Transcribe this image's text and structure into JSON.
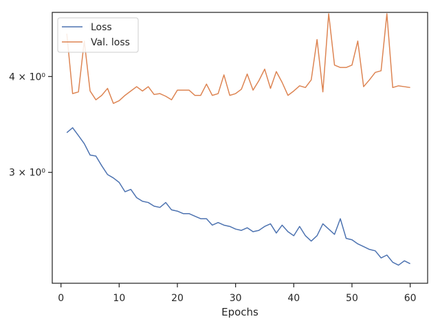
{
  "chart_data": {
    "type": "line",
    "title": "",
    "xlabel": "Epochs",
    "ylabel": "",
    "y_scale": "log",
    "xlim": [
      -1.5,
      63
    ],
    "ylim": [
      2.15,
      4.85
    ],
    "x_ticks": [
      0,
      10,
      20,
      30,
      40,
      50,
      60
    ],
    "x_tick_labels": [
      "0",
      "10",
      "20",
      "30",
      "40",
      "50",
      "60"
    ],
    "y_ticks": [
      3,
      4
    ],
    "y_tick_labels": [
      "3 × 10⁰",
      "4 × 10⁰"
    ],
    "grid": false,
    "legend_position": "top-left",
    "colors": {
      "loss": "#4c72b0",
      "val_loss": "#dd8452"
    },
    "x": [
      1,
      2,
      3,
      4,
      5,
      6,
      7,
      8,
      9,
      10,
      11,
      12,
      13,
      14,
      15,
      16,
      17,
      18,
      19,
      20,
      21,
      22,
      23,
      24,
      25,
      26,
      27,
      28,
      29,
      30,
      31,
      32,
      33,
      34,
      35,
      36,
      37,
      38,
      39,
      40,
      41,
      42,
      43,
      44,
      45,
      46,
      47,
      48,
      49,
      50,
      51,
      52,
      53,
      54,
      55,
      56,
      57,
      58,
      59,
      60
    ],
    "series": [
      {
        "name": "Loss",
        "color": "#4c72b0",
        "values": [
          3.38,
          3.43,
          3.35,
          3.27,
          3.16,
          3.15,
          3.06,
          2.98,
          2.95,
          2.91,
          2.83,
          2.85,
          2.78,
          2.75,
          2.74,
          2.71,
          2.7,
          2.74,
          2.68,
          2.67,
          2.65,
          2.65,
          2.63,
          2.61,
          2.61,
          2.56,
          2.58,
          2.56,
          2.55,
          2.53,
          2.52,
          2.54,
          2.51,
          2.52,
          2.55,
          2.57,
          2.5,
          2.56,
          2.51,
          2.48,
          2.55,
          2.48,
          2.44,
          2.48,
          2.57,
          2.53,
          2.49,
          2.61,
          2.46,
          2.45,
          2.42,
          2.4,
          2.38,
          2.37,
          2.32,
          2.34,
          2.29,
          2.27,
          2.3,
          2.28
        ]
      },
      {
        "name": "Val. loss",
        "color": "#dd8452",
        "values": [
          4.55,
          3.8,
          3.82,
          4.45,
          3.83,
          3.73,
          3.78,
          3.86,
          3.69,
          3.72,
          3.78,
          3.83,
          3.88,
          3.83,
          3.88,
          3.79,
          3.8,
          3.77,
          3.73,
          3.84,
          3.84,
          3.84,
          3.78,
          3.78,
          3.91,
          3.78,
          3.8,
          4.02,
          3.78,
          3.8,
          3.85,
          4.03,
          3.84,
          3.95,
          4.09,
          3.86,
          4.06,
          3.93,
          3.78,
          3.83,
          3.89,
          3.87,
          3.96,
          4.47,
          3.82,
          4.83,
          4.14,
          4.11,
          4.11,
          4.14,
          4.45,
          3.88,
          3.96,
          4.05,
          4.07,
          4.83,
          3.87,
          3.89,
          3.88,
          3.87
        ]
      }
    ]
  }
}
